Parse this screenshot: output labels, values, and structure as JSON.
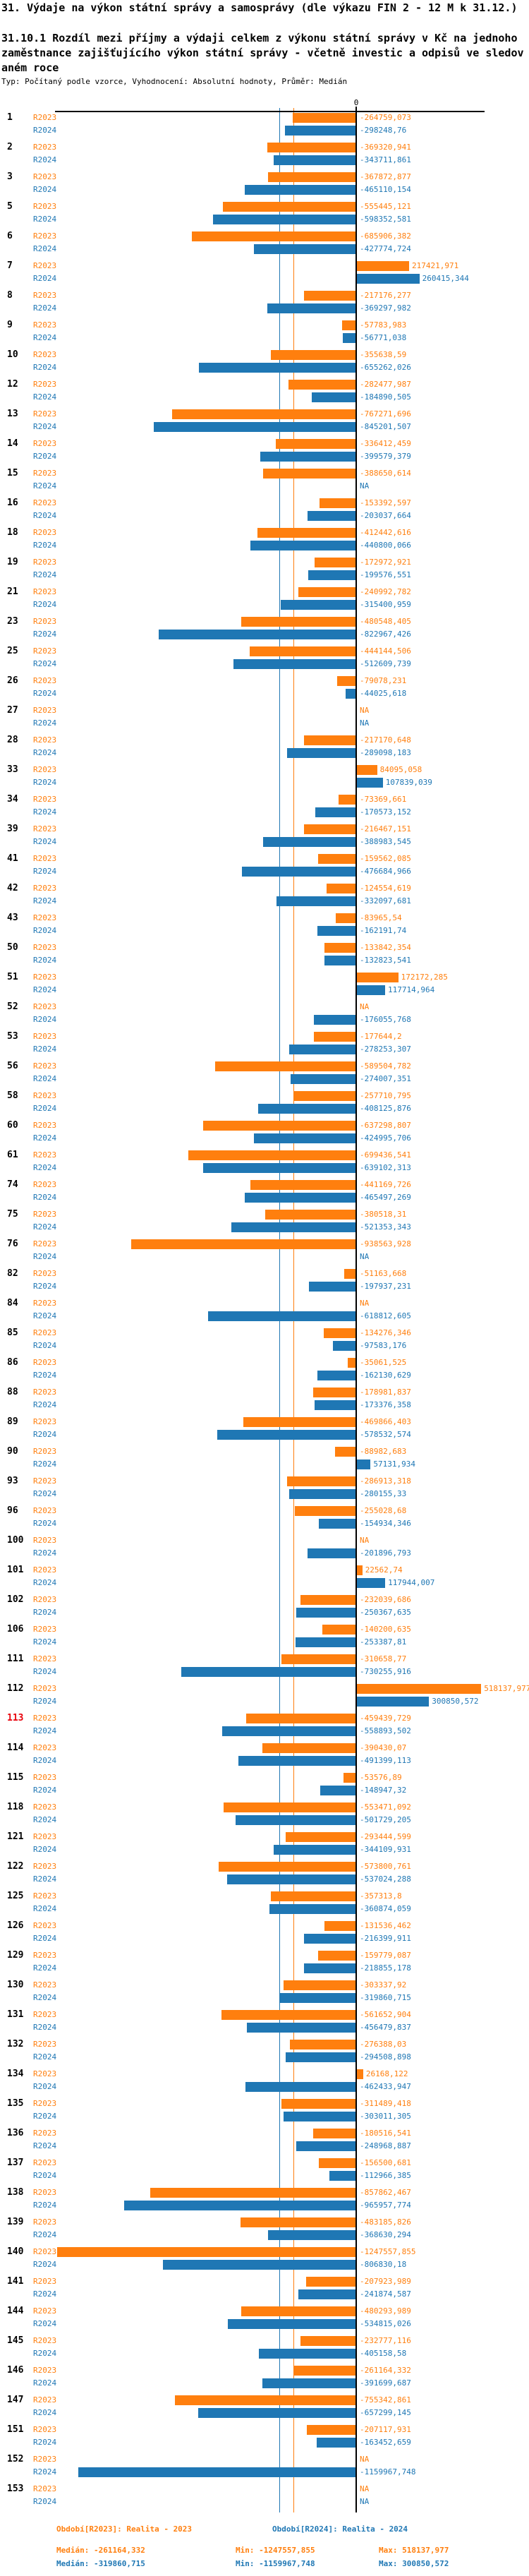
{
  "header": {
    "title": "31. Výdaje na výkon státní správy a samosprávy (dle výkazu FIN 2 - 12 M k 31.12.)",
    "subtitle": "31.10.1 Rozdíl mezi příjmy a výdaji celkem z výkonu státní správy v Kč na jednoho zaměstnance zajišťujícího výkon státní správy - včetně investic a odpisů ve sledovaném roce",
    "meta": "Typ: Počítaný podle vzorce, Vyhodnocení: Absolutní hodnoty, Průměr: Medián"
  },
  "chart_data": {
    "type": "bar",
    "orientation": "horizontal",
    "zero_tick_label": "0",
    "na_label": "NA",
    "axis": {
      "zero_value": 0,
      "units_per_pixel": 2940
    },
    "series": [
      {
        "name": "R2023",
        "color": "#ff7f0e",
        "median": -261164.332,
        "min": -1247557.855,
        "max": 518137.977
      },
      {
        "name": "R2024",
        "color": "#1f77b4",
        "median": -319860.715,
        "min": -1159967.748,
        "max": 300850.572
      }
    ],
    "highlight_color": "#e8000b",
    "highlighted_categories": [
      "113"
    ],
    "rows": [
      {
        "id": "1",
        "r2023": "-264759,073",
        "r2024": "-298248,76"
      },
      {
        "id": "2",
        "r2023": "-369320,941",
        "r2024": "-343711,861"
      },
      {
        "id": "3",
        "r2023": "-367872,877",
        "r2024": "-465110,154"
      },
      {
        "id": "5",
        "r2023": "-555445,121",
        "r2024": "-598352,581"
      },
      {
        "id": "6",
        "r2023": "-685906,382",
        "r2024": "-427774,724"
      },
      {
        "id": "7",
        "r2023": "217421,971",
        "r2024": "260415,344"
      },
      {
        "id": "8",
        "r2023": "-217176,277",
        "r2024": "-369297,982"
      },
      {
        "id": "9",
        "r2023": "-57783,983",
        "r2024": "-56771,038"
      },
      {
        "id": "10",
        "r2023": "-355638,59",
        "r2024": "-655262,026"
      },
      {
        "id": "12",
        "r2023": "-282477,987",
        "r2024": "-184890,505"
      },
      {
        "id": "13",
        "r2023": "-767271,696",
        "r2024": "-845201,507"
      },
      {
        "id": "14",
        "r2023": "-336412,459",
        "r2024": "-399579,379"
      },
      {
        "id": "15",
        "r2023": "-388650,614",
        "r2024": "NA"
      },
      {
        "id": "16",
        "r2023": "-153392,597",
        "r2024": "-203037,664"
      },
      {
        "id": "18",
        "r2023": "-412442,616",
        "r2024": "-440800,066"
      },
      {
        "id": "19",
        "r2023": "-172972,921",
        "r2024": "-199576,551"
      },
      {
        "id": "21",
        "r2023": "-240992,782",
        "r2024": "-315400,959"
      },
      {
        "id": "23",
        "r2023": "-480548,405",
        "r2024": "-822967,426"
      },
      {
        "id": "25",
        "r2023": "-444144,506",
        "r2024": "-512609,739"
      },
      {
        "id": "26",
        "r2023": "-79078,231",
        "r2024": "-44025,618"
      },
      {
        "id": "27",
        "r2023": "NA",
        "r2024": "NA"
      },
      {
        "id": "28",
        "r2023": "-217170,648",
        "r2024": "-289098,183"
      },
      {
        "id": "33",
        "r2023": "84095,058",
        "r2024": "107839,039"
      },
      {
        "id": "34",
        "r2023": "-73369,661",
        "r2024": "-170573,152"
      },
      {
        "id": "39",
        "r2023": "-216467,151",
        "r2024": "-388983,545"
      },
      {
        "id": "41",
        "r2023": "-159562,085",
        "r2024": "-476684,966"
      },
      {
        "id": "42",
        "r2023": "-124554,619",
        "r2024": "-332097,681"
      },
      {
        "id": "43",
        "r2023": "-83965,54",
        "r2024": "-162191,74"
      },
      {
        "id": "50",
        "r2023": "-133842,354",
        "r2024": "-132823,541"
      },
      {
        "id": "51",
        "r2023": "172172,285",
        "r2024": "117714,964"
      },
      {
        "id": "52",
        "r2023": "NA",
        "r2024": "-176055,768"
      },
      {
        "id": "53",
        "r2023": "-177644,2",
        "r2024": "-278253,307"
      },
      {
        "id": "56",
        "r2023": "-589504,782",
        "r2024": "-274007,351"
      },
      {
        "id": "58",
        "r2023": "-257710,795",
        "r2024": "-408125,876"
      },
      {
        "id": "60",
        "r2023": "-637298,807",
        "r2024": "-424995,706"
      },
      {
        "id": "61",
        "r2023": "-699436,541",
        "r2024": "-639102,313"
      },
      {
        "id": "74",
        "r2023": "-441169,726",
        "r2024": "-465497,269"
      },
      {
        "id": "75",
        "r2023": "-380518,31",
        "r2024": "-521353,343"
      },
      {
        "id": "76",
        "r2023": "-938563,928",
        "r2024": "NA"
      },
      {
        "id": "82",
        "r2023": "-51163,668",
        "r2024": "-197937,231"
      },
      {
        "id": "84",
        "r2023": "NA",
        "r2024": "-618812,605"
      },
      {
        "id": "85",
        "r2023": "-134276,346",
        "r2024": "-97583,176"
      },
      {
        "id": "86",
        "r2023": "-35061,525",
        "r2024": "-162130,629"
      },
      {
        "id": "88",
        "r2023": "-178981,837",
        "r2024": "-173376,358"
      },
      {
        "id": "89",
        "r2023": "-469866,403",
        "r2024": "-578532,574"
      },
      {
        "id": "90",
        "r2023": "-88982,683",
        "r2024": "57131,934"
      },
      {
        "id": "93",
        "r2023": "-286913,318",
        "r2024": "-280155,33"
      },
      {
        "id": "96",
        "r2023": "-255028,68",
        "r2024": "-154934,346"
      },
      {
        "id": "100",
        "r2023": "NA",
        "r2024": "-201896,793"
      },
      {
        "id": "101",
        "r2023": "22562,74",
        "r2024": "117944,007"
      },
      {
        "id": "102",
        "r2023": "-232039,686",
        "r2024": "-250367,635"
      },
      {
        "id": "106",
        "r2023": "-140200,635",
        "r2024": "-253387,81"
      },
      {
        "id": "111",
        "r2023": "-310658,77",
        "r2024": "-730255,916"
      },
      {
        "id": "112",
        "r2023": "518137,977",
        "r2024": "300850,572"
      },
      {
        "id": "113",
        "r2023": "-459439,729",
        "r2024": "-558893,502"
      },
      {
        "id": "114",
        "r2023": "-390430,07",
        "r2024": "-491399,113"
      },
      {
        "id": "115",
        "r2023": "-53576,89",
        "r2024": "-148947,32"
      },
      {
        "id": "118",
        "r2023": "-553471,092",
        "r2024": "-501729,205"
      },
      {
        "id": "121",
        "r2023": "-293444,599",
        "r2024": "-344109,931"
      },
      {
        "id": "122",
        "r2023": "-573800,761",
        "r2024": "-537024,288"
      },
      {
        "id": "125",
        "r2023": "-357313,8",
        "r2024": "-360874,059"
      },
      {
        "id": "126",
        "r2023": "-131536,462",
        "r2024": "-216399,911"
      },
      {
        "id": "129",
        "r2023": "-159779,087",
        "r2024": "-218855,178"
      },
      {
        "id": "130",
        "r2023": "-303337,92",
        "r2024": "-319860,715"
      },
      {
        "id": "131",
        "r2023": "-561652,904",
        "r2024": "-456479,837"
      },
      {
        "id": "132",
        "r2023": "-276388,03",
        "r2024": "-294508,898"
      },
      {
        "id": "134",
        "r2023": "26168,122",
        "r2024": "-462433,947"
      },
      {
        "id": "135",
        "r2023": "-311489,418",
        "r2024": "-303011,305"
      },
      {
        "id": "136",
        "r2023": "-180516,541",
        "r2024": "-248968,887"
      },
      {
        "id": "137",
        "r2023": "-156500,681",
        "r2024": "-112966,385"
      },
      {
        "id": "138",
        "r2023": "-857862,467",
        "r2024": "-965957,774"
      },
      {
        "id": "139",
        "r2023": "-483185,826",
        "r2024": "-368630,294"
      },
      {
        "id": "140",
        "r2023": "-1247557,855",
        "r2024": "-806830,18"
      },
      {
        "id": "141",
        "r2023": "-207923,989",
        "r2024": "-241874,587"
      },
      {
        "id": "144",
        "r2023": "-480293,989",
        "r2024": "-534815,026"
      },
      {
        "id": "145",
        "r2023": "-232777,116",
        "r2024": "-405158,58"
      },
      {
        "id": "146",
        "r2023": "-261164,332",
        "r2024": "-391699,687"
      },
      {
        "id": "147",
        "r2023": "-755342,861",
        "r2024": "-657299,145"
      },
      {
        "id": "151",
        "r2023": "-207117,931",
        "r2024": "-163452,659"
      },
      {
        "id": "152",
        "r2023": "NA",
        "r2024": "-1159967,748"
      },
      {
        "id": "153",
        "r2023": "NA",
        "r2024": "NA"
      }
    ]
  },
  "footer": {
    "legend_r2023": "Období[R2023]: Realita - 2023",
    "legend_r2024": "Období[R2024]: Realita - 2024",
    "stats_r2023": {
      "median": "Medián: -261164,332",
      "min": "Min: -1247557,855",
      "max": "Max: 518137,977"
    },
    "stats_r2024": {
      "median": "Medián: -319860,715",
      "min": "Min: -1159967,748",
      "max": "Max: 300850,572"
    }
  }
}
